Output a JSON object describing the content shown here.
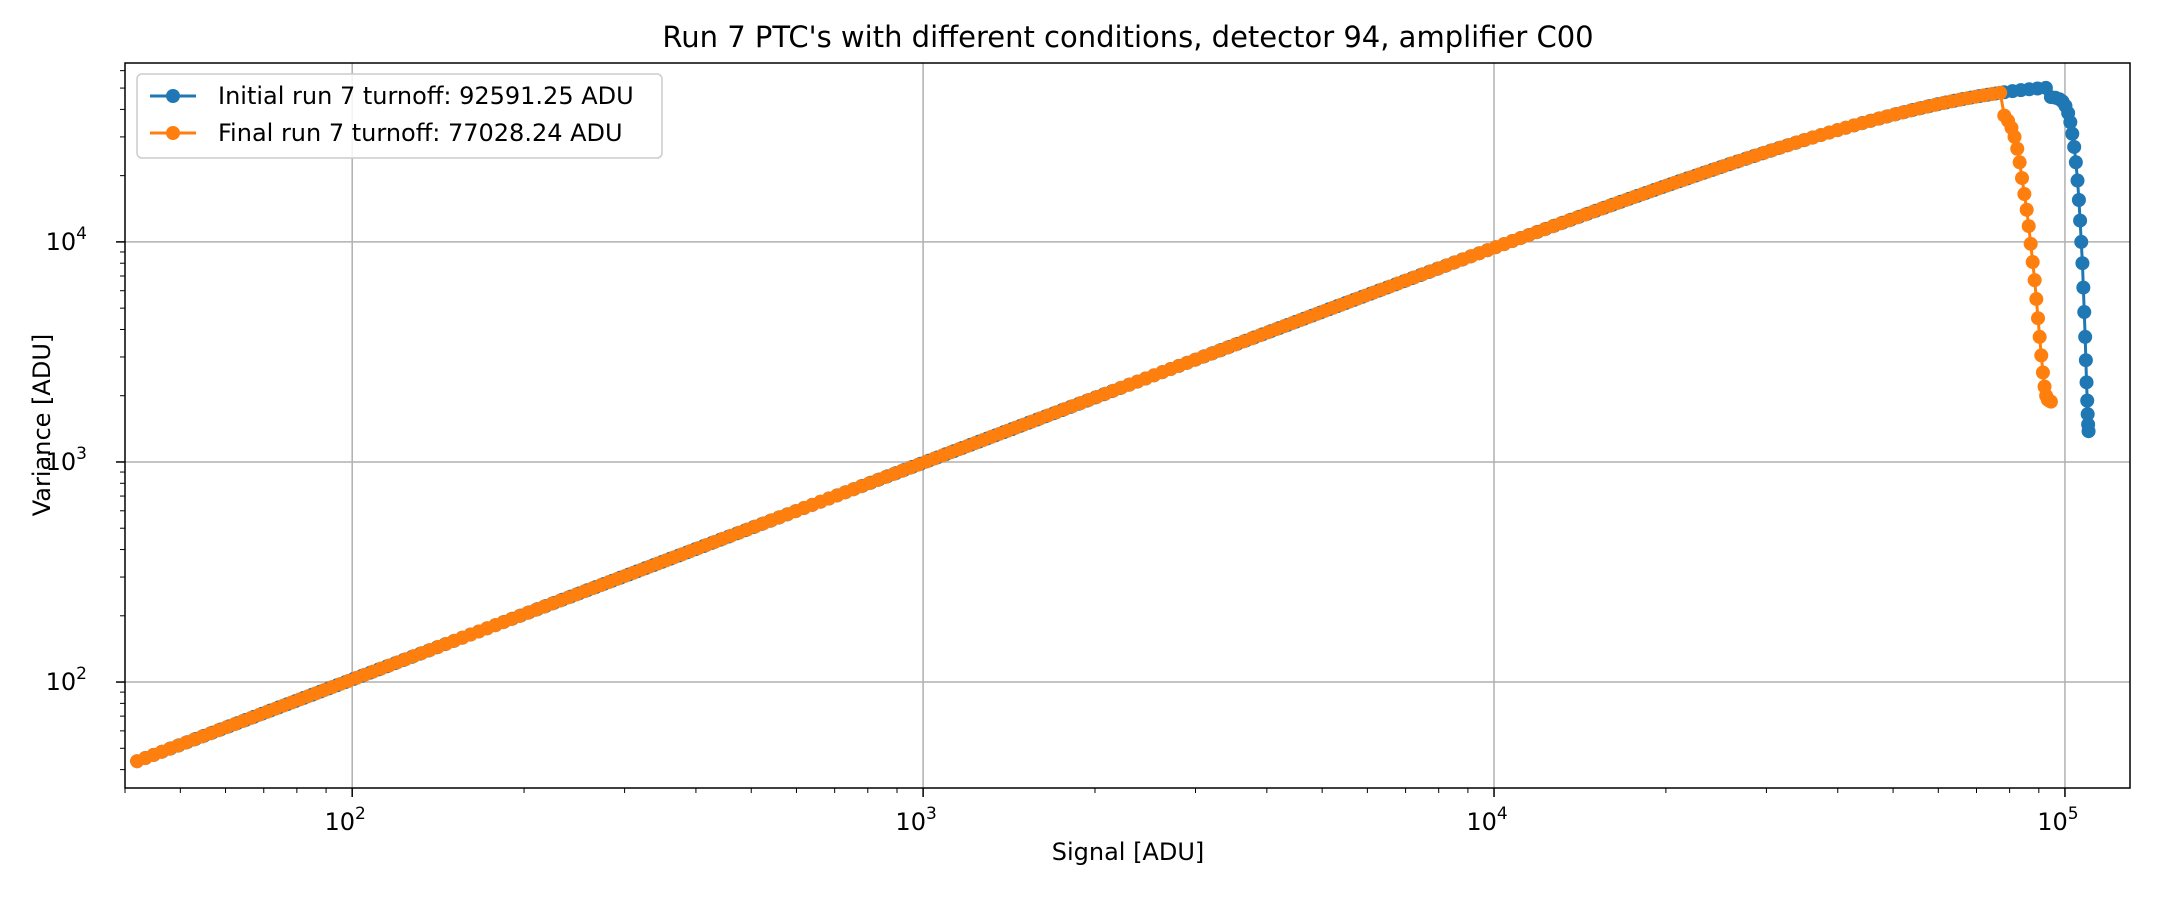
{
  "chart_data": {
    "type": "line",
    "title": "Run 7 PTC's with different conditions, detector 94, amplifier C00",
    "xlabel": "Signal [ADU]",
    "ylabel": "Variance [ADU]",
    "xscale": "log",
    "yscale": "log",
    "xlim": [
      40,
      130000
    ],
    "ylim": [
      33,
      65000
    ],
    "grid": true,
    "legend_position": "upper-left",
    "x_ticks": [
      {
        "value": 100,
        "base": "10",
        "exp": "2"
      },
      {
        "value": 1000,
        "base": "10",
        "exp": "3"
      },
      {
        "value": 10000,
        "base": "10",
        "exp": "4"
      },
      {
        "value": 100000,
        "base": "10",
        "exp": "5"
      }
    ],
    "y_ticks": [
      {
        "value": 100,
        "base": "10",
        "exp": "2"
      },
      {
        "value": 1000,
        "base": "10",
        "exp": "3"
      },
      {
        "value": 10000,
        "base": "10",
        "exp": "4"
      }
    ],
    "series": [
      {
        "name": "Initial run 7 turnoff: 92591.25 ADU",
        "color": "#1f77b4",
        "marker": "circle",
        "sampling": {
          "x_min": 42,
          "x_max": 92591.25,
          "points": 230
        },
        "x_tail": [
          94500,
          96200,
          97800,
          99000,
          100200,
          101300,
          102200,
          103000,
          103800,
          104500,
          105200,
          105800,
          106300,
          106800,
          107300,
          107700,
          108100,
          108500,
          108800,
          109100,
          109400,
          109600,
          109800,
          110000
        ],
        "y_tail": [
          45500,
          45200,
          44500,
          43500,
          41500,
          38500,
          35000,
          31000,
          27000,
          23000,
          19000,
          15500,
          12500,
          10000,
          8000,
          6200,
          4800,
          3700,
          2900,
          2300,
          1900,
          1650,
          1480,
          1380
        ]
      },
      {
        "name": "Final run 7 turnoff: 77028.24 ADU",
        "color": "#ff7f0e",
        "marker": "circle",
        "sampling": {
          "x_min": 42,
          "x_max": 77028.24,
          "points": 230
        },
        "x_tail": [
          78300,
          79500,
          80600,
          81600,
          82500,
          83300,
          84100,
          84900,
          85700,
          86400,
          87100,
          87800,
          88500,
          89100,
          89700,
          90300,
          90900,
          91500,
          92100,
          92700,
          93300,
          93900,
          94500
        ],
        "y_tail": [
          37500,
          35500,
          33000,
          30000,
          26500,
          23000,
          19500,
          16500,
          14000,
          11800,
          9800,
          8100,
          6700,
          5500,
          4500,
          3700,
          3050,
          2550,
          2200,
          2000,
          1920,
          1900,
          1880
        ]
      }
    ]
  }
}
